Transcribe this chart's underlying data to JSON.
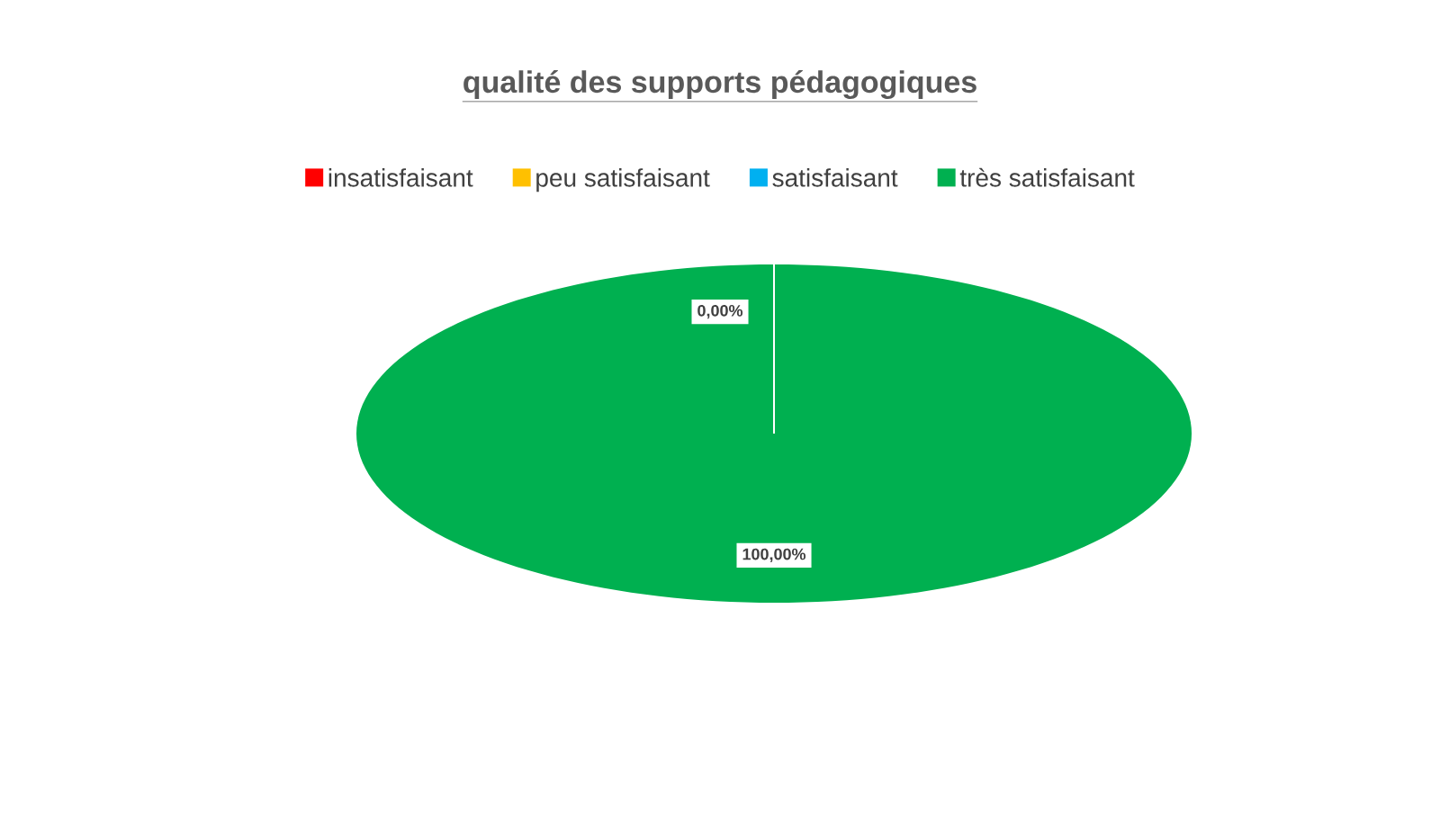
{
  "chart_data": {
    "type": "pie",
    "title": "qualité des supports pédagogiques",
    "categories": [
      "insatisfaisant",
      "peu satisfaisant",
      "satisfaisant",
      "très satisfaisant"
    ],
    "values": [
      0,
      0,
      0,
      100
    ],
    "colors": [
      "#ff0000",
      "#ffc000",
      "#00b0f0",
      "#00b050"
    ],
    "value_labels": [
      null,
      null,
      "0,00%",
      "100,00%"
    ],
    "legend": "top"
  }
}
